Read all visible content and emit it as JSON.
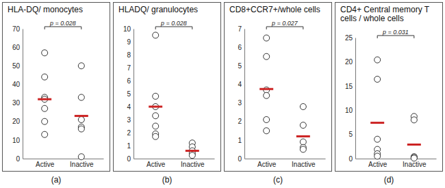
{
  "chart_data": [
    {
      "type": "dot",
      "title": "HLA-DQ/ monocytes",
      "caption": "(a)",
      "categories": [
        "Active",
        "Inactive"
      ],
      "values": [
        [
          57,
          44,
          33,
          32,
          27,
          20,
          13
        ],
        [
          50,
          33,
          21,
          17,
          16,
          1
        ]
      ],
      "means": [
        32,
        23
      ],
      "color": "#cc2222",
      "annotations": [
        {
          "text": "p = 0.028"
        }
      ],
      "ylim": [
        0,
        70
      ],
      "yticks": [
        0,
        10,
        20,
        30,
        40,
        50,
        60,
        70
      ],
      "grid": false
    },
    {
      "type": "dot",
      "title": "HLADQ/ granulocytes",
      "caption": "(b)",
      "categories": [
        "Active",
        "Inactive"
      ],
      "values": [
        [
          9.5,
          4.8,
          4.0,
          3.3,
          2.5,
          1.9,
          1.7
        ],
        [
          1.2,
          0.9,
          0.6,
          0.4,
          0.25
        ]
      ],
      "means": [
        4.0,
        0.6
      ],
      "color": "#cc2222",
      "annotations": [
        {
          "text": "p = 0.028"
        }
      ],
      "ylim": [
        0,
        10
      ],
      "yticks": [
        0,
        1,
        2,
        3,
        4,
        5,
        6,
        7,
        8,
        9,
        10
      ],
      "grid": false
    },
    {
      "type": "dot",
      "title": "CD8+CCR7+/whole cells",
      "caption": "(c)",
      "categories": [
        "Active",
        "Inactive"
      ],
      "values": [
        [
          6.5,
          5.5,
          3.7,
          3.4,
          2.1,
          1.5
        ],
        [
          2.8,
          1.8,
          0.9,
          0.6,
          0.5
        ]
      ],
      "means": [
        3.75,
        1.2
      ],
      "color": "#cc2222",
      "annotations": [
        {
          "text": "p = 0.027"
        }
      ],
      "ylim": [
        0,
        7
      ],
      "yticks": [
        0,
        1,
        2,
        3,
        4,
        5,
        6,
        7
      ],
      "grid": false
    },
    {
      "type": "dot",
      "title": "CD4+ Central memory T cells / whole cells",
      "caption": "(d)",
      "categories": [
        "Active",
        "Inactive"
      ],
      "values": [
        [
          20.4,
          16.4,
          4.0,
          1.9,
          1.0,
          0.5
        ],
        [
          8.7,
          8.0,
          0.4,
          0.2,
          0.1
        ]
      ],
      "means": [
        7.4,
        2.9
      ],
      "color": "#cc2222",
      "annotations": [
        {
          "text": "p = 0.031"
        }
      ],
      "ylim": [
        0,
        25
      ],
      "yticks": [
        0,
        5,
        10,
        15,
        20,
        25
      ],
      "grid": false
    }
  ]
}
